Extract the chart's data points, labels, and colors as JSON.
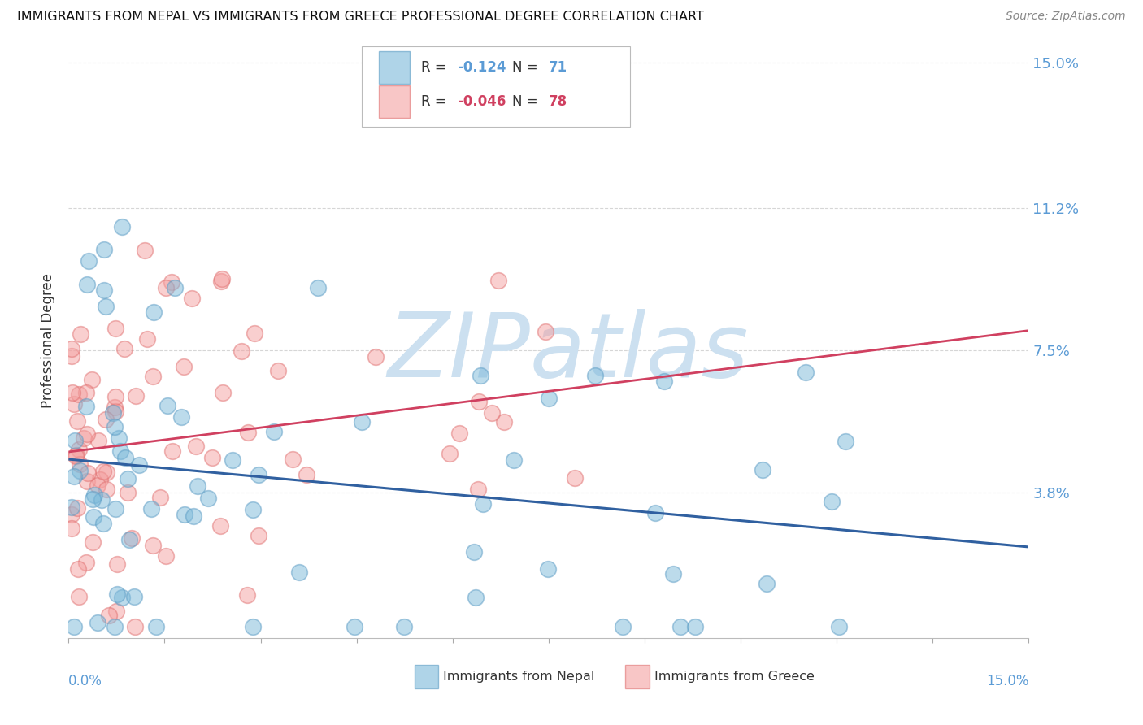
{
  "title": "IMMIGRANTS FROM NEPAL VS IMMIGRANTS FROM GREECE PROFESSIONAL DEGREE CORRELATION CHART",
  "source": "Source: ZipAtlas.com",
  "ylabel": "Professional Degree",
  "ytick_labels": [
    "3.8%",
    "7.5%",
    "11.2%",
    "15.0%"
  ],
  "ytick_values": [
    3.8,
    7.5,
    11.2,
    15.0
  ],
  "xrange": [
    0.0,
    15.0
  ],
  "yrange": [
    0.0,
    15.0
  ],
  "nepal_label": "Immigrants from Nepal",
  "greece_label": "Immigrants from Greece",
  "nepal_color": "#7ab8d9",
  "greece_color": "#f4a0a0",
  "nepal_edge_color": "#5a9bc4",
  "greece_edge_color": "#e07070",
  "nepal_line_color": "#3060a0",
  "greece_line_color": "#d04060",
  "nepal_R": -0.124,
  "nepal_N": 71,
  "greece_R": -0.046,
  "greece_N": 78,
  "watermark": "ZIPatlas",
  "watermark_color": "#cce0f0",
  "background_color": "#ffffff",
  "grid_color": "#cccccc",
  "label_color": "#5b9bd5",
  "text_color": "#333333"
}
